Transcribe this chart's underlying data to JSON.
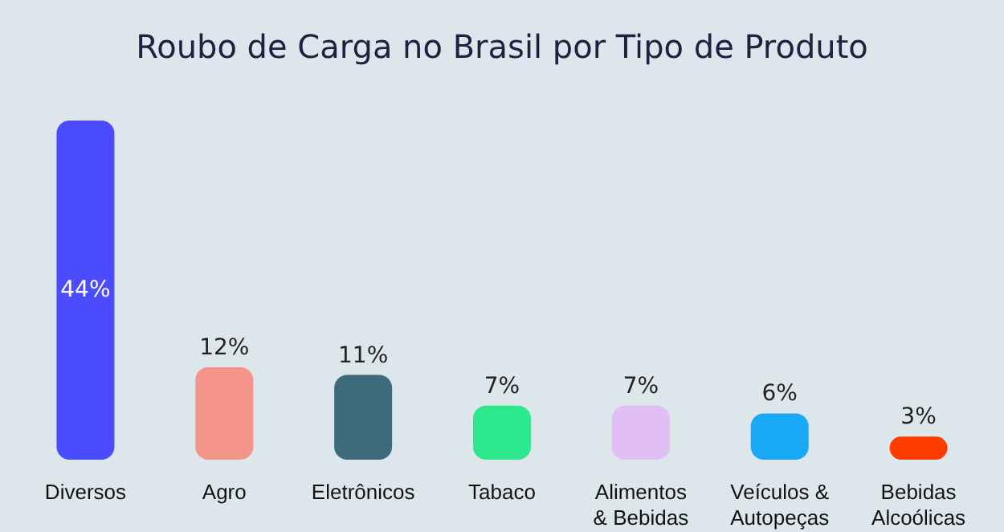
{
  "chart_data": {
    "type": "bar",
    "title": "Roubo de Carga no Brasil por Tipo de Produto",
    "categories": [
      "Diversos",
      "Agro",
      "Eletrônicos",
      "Tabaco",
      "Alimentos\n& Bebidas",
      "Veículos &\nAutopeças",
      "Bebidas\nAlcoólicas"
    ],
    "values": [
      44,
      12,
      11,
      7,
      7,
      6,
      3
    ],
    "value_labels": [
      "44%",
      "12%",
      "11%",
      "7%",
      "7%",
      "6%",
      "3%"
    ],
    "colors": [
      "#4b4bff",
      "#f4948a",
      "#3d6b7a",
      "#2ee88e",
      "#e0bff5",
      "#18a8f5",
      "#ff3d00"
    ]
  }
}
